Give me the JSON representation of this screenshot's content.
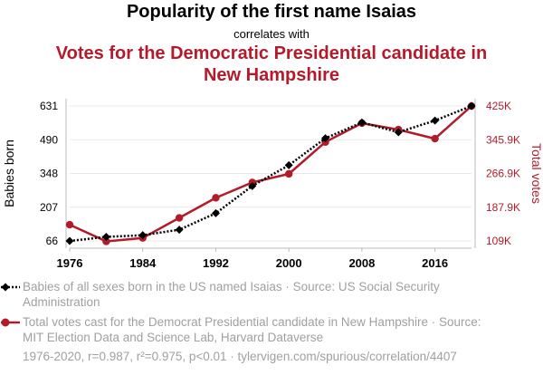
{
  "titles": {
    "main": "Popularity of the first name Isaias",
    "connector": "correlates with",
    "secondary": "Votes for the Democratic Presidential candidate in New Hampshire"
  },
  "chart_data": {
    "type": "line",
    "x": [
      1976,
      1980,
      1984,
      1988,
      1992,
      1996,
      2000,
      2004,
      2008,
      2012,
      2016,
      2020
    ],
    "x_ticks": [
      "1976",
      "1984",
      "1992",
      "2000",
      "2008",
      "2016"
    ],
    "xlim": [
      1976,
      2020
    ],
    "left_axis": {
      "label": "Babies born",
      "ticks": [
        "66",
        "207",
        "348",
        "490",
        "631"
      ],
      "ylim": [
        66,
        631
      ],
      "color": "#000000"
    },
    "right_axis": {
      "label": "Total votes",
      "ticks": [
        "109K",
        "187.9K",
        "266.9K",
        "345.9K",
        "425K"
      ],
      "ylim": [
        109000,
        425000
      ],
      "color": "#b31b2b"
    },
    "grid": true,
    "series": [
      {
        "name": "Babies of all sexes born in the US named Isaias · Source: US Social Security Administration",
        "axis": "left",
        "color": "#000000",
        "style": "dotted",
        "marker": "diamond",
        "values": [
          66,
          83,
          90,
          113,
          182,
          296,
          383,
          496,
          562,
          521,
          570,
          631
        ]
      },
      {
        "name": "Total votes cast for the Democrat Presidential candidate in New Hampshire · Source: MIT Election Data and Science Lab, Harvard Dataverse",
        "axis": "right",
        "color": "#b31b2b",
        "style": "solid",
        "marker": "circle",
        "values": [
          147000,
          108000,
          116000,
          163000,
          210000,
          246000,
          266000,
          340500,
          384800,
          369600,
          348500,
          424900
        ]
      }
    ]
  },
  "footer": "1976-2020, r=0.987, r²=0.975, p<0.01 · tylervigen.com/spurious/correlation/4407"
}
